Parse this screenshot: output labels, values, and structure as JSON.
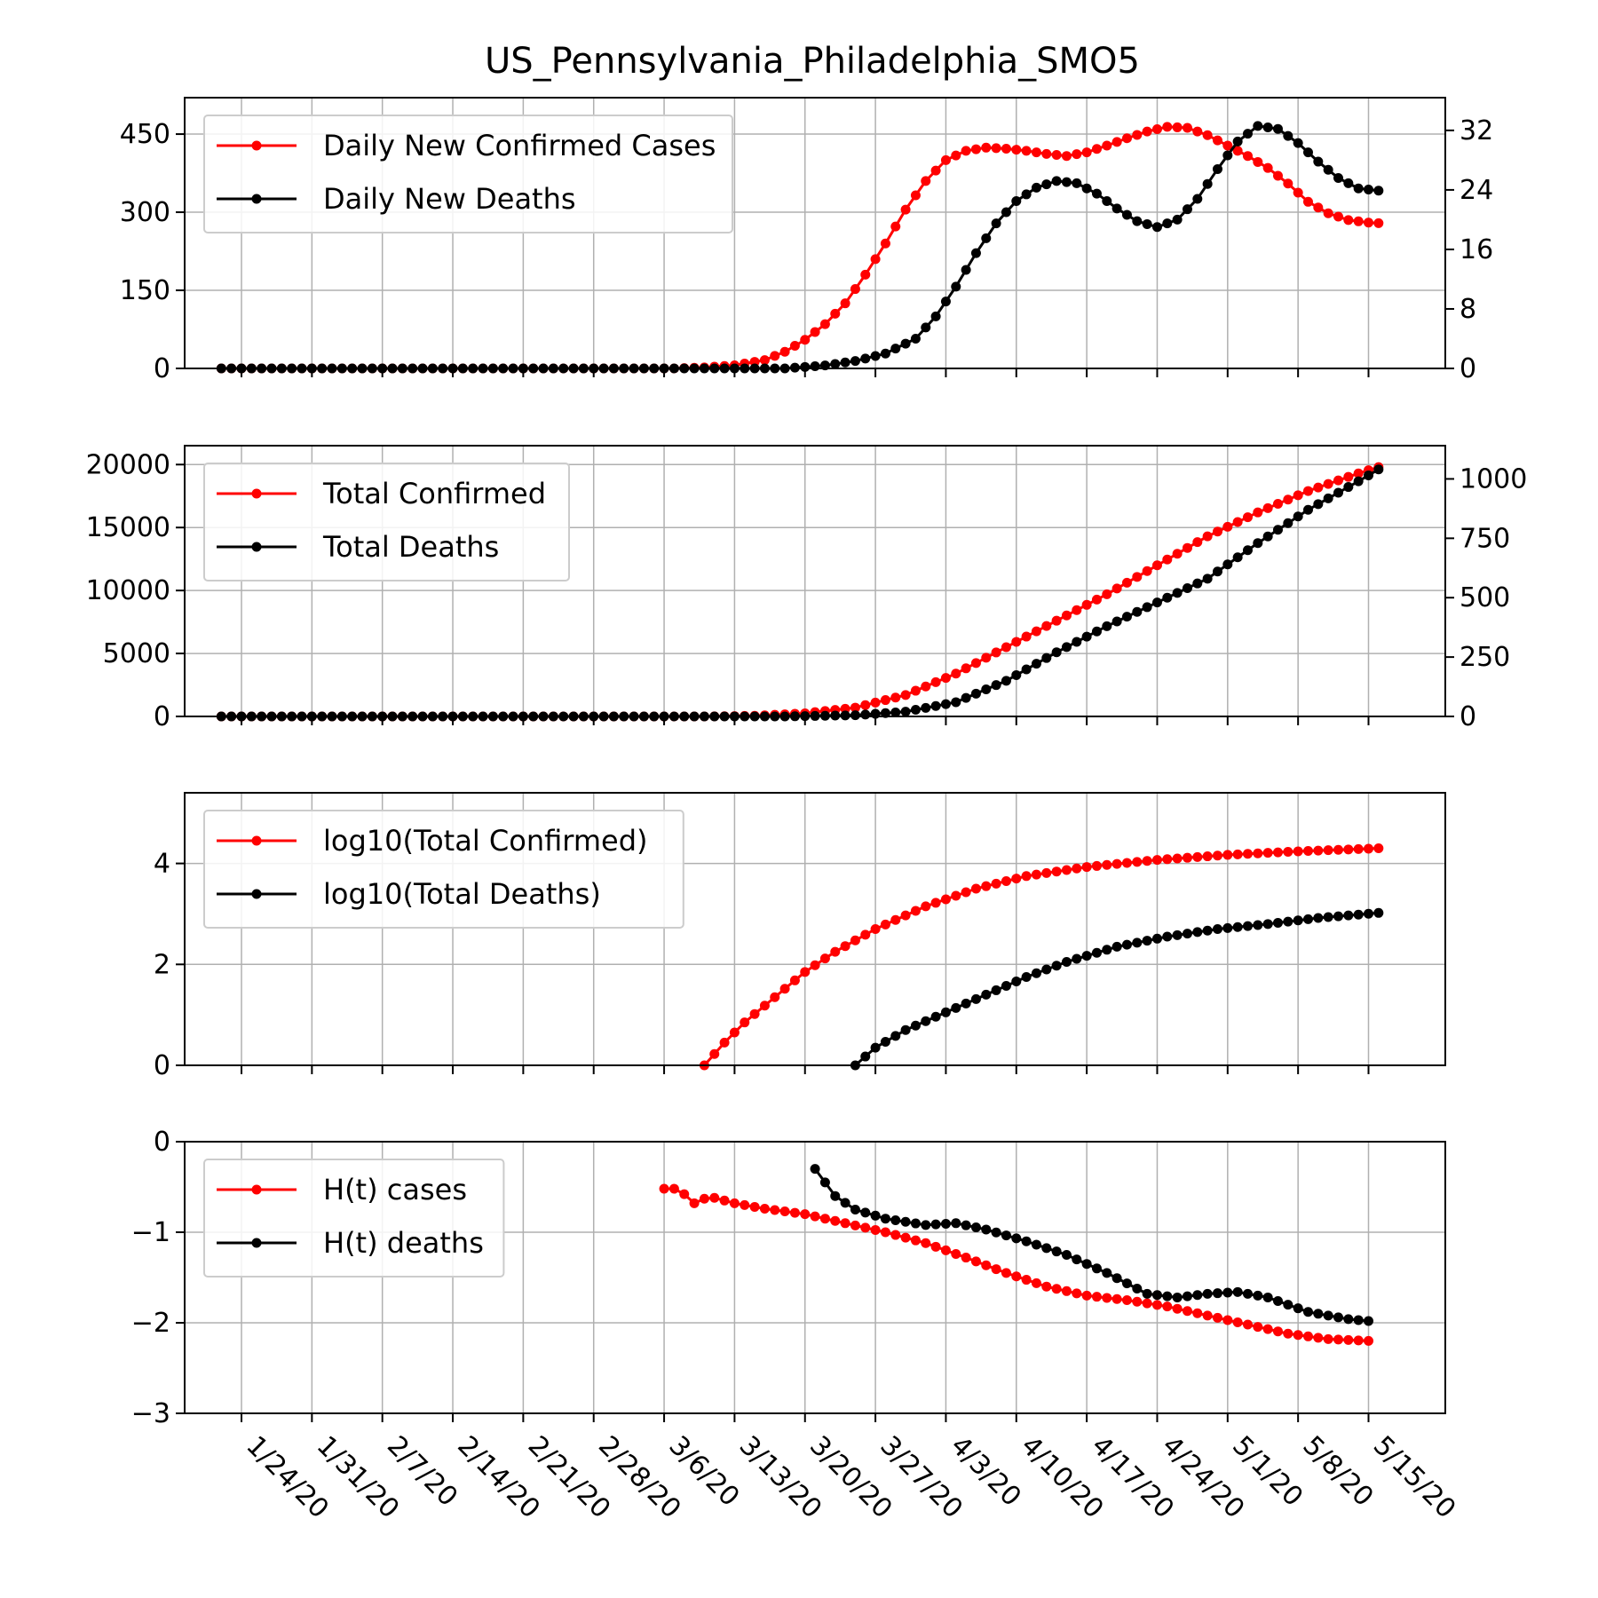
{
  "title": "US_Pennsylvania_Philadelphia_SMO5",
  "colors": {
    "cases": "#ff0000",
    "deaths": "#000000",
    "grid": "#b0b0b0"
  },
  "x_tick_labels": [
    "1/24/20",
    "1/31/20",
    "2/7/20",
    "2/14/20",
    "2/21/20",
    "2/28/20",
    "3/6/20",
    "3/13/20",
    "3/20/20",
    "3/27/20",
    "4/3/20",
    "4/10/20",
    "4/17/20",
    "4/24/20",
    "5/1/20",
    "5/8/20",
    "5/15/20"
  ],
  "chart_data": [
    {
      "type": "line",
      "panel": "daily",
      "title": "US_Pennsylvania_Philadelphia_SMO5",
      "x_start": "1/22/20",
      "x_end": "5/16/20",
      "grid": true,
      "legend": "top-left",
      "legend_entries": [
        "Daily New Confirmed Cases",
        "Daily New Deaths"
      ],
      "y_left": {
        "ylim": [
          0,
          520
        ],
        "ticks": [
          0,
          150,
          300,
          450
        ]
      },
      "y_right": {
        "ylim": [
          0,
          36.4
        ],
        "ticks": [
          0,
          8,
          16,
          24,
          32
        ]
      },
      "series": [
        {
          "name": "Daily New Confirmed Cases",
          "axis": "left",
          "color": "#ff0000",
          "points": [
            [
              "1/22/20",
              0
            ],
            [
              "3/7/20",
              0
            ],
            [
              "3/10/20",
              2
            ],
            [
              "3/13/20",
              6
            ],
            [
              "3/16/20",
              16
            ],
            [
              "3/18/20",
              32
            ],
            [
              "3/20/20",
              55
            ],
            [
              "3/22/20",
              85
            ],
            [
              "3/24/20",
              125
            ],
            [
              "3/26/20",
              180
            ],
            [
              "3/28/20",
              240
            ],
            [
              "3/30/20",
              305
            ],
            [
              "4/1/20",
              360
            ],
            [
              "4/3/20",
              400
            ],
            [
              "4/5/20",
              418
            ],
            [
              "4/7/20",
              424
            ],
            [
              "4/9/20",
              422
            ],
            [
              "4/11/20",
              418
            ],
            [
              "4/13/20",
              412
            ],
            [
              "4/15/20",
              408
            ],
            [
              "4/17/20",
              415
            ],
            [
              "4/19/20",
              428
            ],
            [
              "4/21/20",
              442
            ],
            [
              "4/23/20",
              455
            ],
            [
              "4/25/20",
              464
            ],
            [
              "4/27/20",
              462
            ],
            [
              "4/29/20",
              448
            ],
            [
              "5/1/20",
              428
            ],
            [
              "5/3/20",
              408
            ],
            [
              "5/5/20",
              385
            ],
            [
              "5/7/20",
              355
            ],
            [
              "5/9/20",
              320
            ],
            [
              "5/11/20",
              298
            ],
            [
              "5/13/20",
              285
            ],
            [
              "5/15/20",
              280
            ],
            [
              "5/16/20",
              279
            ]
          ]
        },
        {
          "name": "Daily New Deaths",
          "axis": "right",
          "color": "#000000",
          "points": [
            [
              "1/22/20",
              0
            ],
            [
              "3/18/20",
              0
            ],
            [
              "3/22/20",
              0.4
            ],
            [
              "3/25/20",
              1
            ],
            [
              "3/28/20",
              2
            ],
            [
              "3/31/20",
              4
            ],
            [
              "4/2/20",
              7
            ],
            [
              "4/4/20",
              11
            ],
            [
              "4/6/20",
              15.5
            ],
            [
              "4/8/20",
              19.5
            ],
            [
              "4/10/20",
              22.5
            ],
            [
              "4/12/20",
              24.3
            ],
            [
              "4/14/20",
              25.2
            ],
            [
              "4/16/20",
              24.9
            ],
            [
              "4/18/20",
              23.5
            ],
            [
              "4/20/20",
              21.5
            ],
            [
              "4/22/20",
              19.8
            ],
            [
              "4/24/20",
              19
            ],
            [
              "4/26/20",
              20
            ],
            [
              "4/28/20",
              22.8
            ],
            [
              "4/30/20",
              26.8
            ],
            [
              "5/2/20",
              30.5
            ],
            [
              "5/4/20",
              32.6
            ],
            [
              "5/6/20",
              32.2
            ],
            [
              "5/8/20",
              30.3
            ],
            [
              "5/10/20",
              27.8
            ],
            [
              "5/12/20",
              25.6
            ],
            [
              "5/14/20",
              24.2
            ],
            [
              "5/16/20",
              23.9
            ]
          ]
        }
      ]
    },
    {
      "type": "line",
      "panel": "total",
      "x_start": "1/22/20",
      "x_end": "5/16/20",
      "grid": true,
      "legend": "top-left",
      "legend_entries": [
        "Total Confirmed",
        "Total Deaths"
      ],
      "y_left": {
        "ylim": [
          0,
          21500
        ],
        "ticks": [
          0,
          5000,
          10000,
          15000,
          20000
        ]
      },
      "y_right": {
        "ylim": [
          0,
          1140
        ],
        "ticks": [
          0,
          250,
          500,
          750,
          1000
        ]
      },
      "series": [
        {
          "name": "Total Confirmed",
          "axis": "left",
          "color": "#ff0000",
          "points": [
            [
              "1/22/20",
              0
            ],
            [
              "3/10/20",
              0
            ],
            [
              "3/15/20",
              50
            ],
            [
              "3/20/20",
              250
            ],
            [
              "3/25/20",
              700
            ],
            [
              "3/30/20",
              1700
            ],
            [
              "4/4/20",
              3400
            ],
            [
              "4/9/20",
              5500
            ],
            [
              "4/14/20",
              7600
            ],
            [
              "4/19/20",
              9700
            ],
            [
              "4/24/20",
              12000
            ],
            [
              "4/29/20",
              14300
            ],
            [
              "5/4/20",
              16200
            ],
            [
              "5/9/20",
              17900
            ],
            [
              "5/14/20",
              19300
            ],
            [
              "5/16/20",
              19800
            ]
          ]
        },
        {
          "name": "Total Deaths",
          "axis": "right",
          "color": "#000000",
          "points": [
            [
              "1/22/20",
              0
            ],
            [
              "3/18/20",
              0
            ],
            [
              "3/25/20",
              5
            ],
            [
              "3/30/20",
              20
            ],
            [
              "4/4/20",
              60
            ],
            [
              "4/9/20",
              150
            ],
            [
              "4/14/20",
              270
            ],
            [
              "4/19/20",
              380
            ],
            [
              "4/24/20",
              480
            ],
            [
              "4/29/20",
              580
            ],
            [
              "5/4/20",
              730
            ],
            [
              "5/9/20",
              870
            ],
            [
              "5/14/20",
              990
            ],
            [
              "5/16/20",
              1040
            ]
          ]
        }
      ]
    },
    {
      "type": "line",
      "panel": "log",
      "x_start": "1/22/20",
      "x_end": "5/16/20",
      "grid": true,
      "legend": "top-left",
      "legend_entries": [
        "log10(Total Confirmed)",
        "log10(Total Deaths)"
      ],
      "y_left": {
        "ylim": [
          0,
          5.4
        ],
        "ticks": [
          0,
          2,
          4
        ]
      },
      "series": [
        {
          "name": "log10(Total Confirmed)",
          "axis": "left",
          "color": "#ff0000",
          "points": [
            [
              "3/10/20",
              0
            ],
            [
              "3/12/20",
              0.45
            ],
            [
              "3/14/20",
              0.85
            ],
            [
              "3/17/20",
              1.35
            ],
            [
              "3/20/20",
              1.85
            ],
            [
              "3/23/20",
              2.25
            ],
            [
              "3/27/20",
              2.7
            ],
            [
              "4/1/20",
              3.15
            ],
            [
              "4/6/20",
              3.5
            ],
            [
              "4/11/20",
              3.75
            ],
            [
              "4/17/20",
              3.93
            ],
            [
              "4/24/20",
              4.07
            ],
            [
              "5/1/20",
              4.17
            ],
            [
              "5/8/20",
              4.24
            ],
            [
              "5/16/20",
              4.3
            ]
          ]
        },
        {
          "name": "log10(Total Deaths)",
          "axis": "left",
          "color": "#000000",
          "points": [
            [
              "3/25/20",
              0
            ],
            [
              "3/27/20",
              0.35
            ],
            [
              "3/30/20",
              0.7
            ],
            [
              "4/3/20",
              1.05
            ],
            [
              "4/7/20",
              1.4
            ],
            [
              "4/11/20",
              1.75
            ],
            [
              "4/15/20",
              2.05
            ],
            [
              "4/20/20",
              2.35
            ],
            [
              "4/25/20",
              2.55
            ],
            [
              "4/30/20",
              2.7
            ],
            [
              "5/5/20",
              2.8
            ],
            [
              "5/10/20",
              2.92
            ],
            [
              "5/16/20",
              3.02
            ]
          ]
        }
      ]
    },
    {
      "type": "line",
      "panel": "ht",
      "x_start": "1/22/20",
      "x_end": "5/16/20",
      "grid": true,
      "legend": "top-left",
      "legend_entries": [
        "H(t) cases",
        "H(t) deaths"
      ],
      "y_left": {
        "ylim": [
          -3,
          0
        ],
        "ticks": [
          0,
          -1,
          -2,
          -3
        ]
      },
      "series": [
        {
          "name": "H(t) cases",
          "axis": "left",
          "color": "#ff0000",
          "points": [
            [
              "3/6/20",
              -0.52
            ],
            [
              "3/7/20",
              -0.52
            ],
            [
              "3/8/20",
              -0.58
            ],
            [
              "3/9/20",
              -0.68
            ],
            [
              "3/10/20",
              -0.63
            ],
            [
              "3/11/20",
              -0.62
            ],
            [
              "3/13/20",
              -0.68
            ],
            [
              "3/16/20",
              -0.74
            ],
            [
              "3/20/20",
              -0.8
            ],
            [
              "3/24/20",
              -0.9
            ],
            [
              "3/28/20",
              -1.0
            ],
            [
              "4/1/20",
              -1.12
            ],
            [
              "4/5/20",
              -1.28
            ],
            [
              "4/9/20",
              -1.45
            ],
            [
              "4/13/20",
              -1.6
            ],
            [
              "4/17/20",
              -1.7
            ],
            [
              "4/21/20",
              -1.75
            ],
            [
              "4/25/20",
              -1.82
            ],
            [
              "4/29/20",
              -1.92
            ],
            [
              "5/3/20",
              -2.02
            ],
            [
              "5/7/20",
              -2.12
            ],
            [
              "5/11/20",
              -2.18
            ],
            [
              "5/15/20",
              -2.2
            ]
          ]
        },
        {
          "name": "H(t) deaths",
          "axis": "left",
          "color": "#000000",
          "points": [
            [
              "3/21/20",
              -0.3
            ],
            [
              "3/22/20",
              -0.45
            ],
            [
              "3/23/20",
              -0.6
            ],
            [
              "3/25/20",
              -0.75
            ],
            [
              "3/28/20",
              -0.85
            ],
            [
              "4/1/20",
              -0.92
            ],
            [
              "4/4/20",
              -0.9
            ],
            [
              "4/7/20",
              -0.97
            ],
            [
              "4/11/20",
              -1.1
            ],
            [
              "4/15/20",
              -1.25
            ],
            [
              "4/19/20",
              -1.45
            ],
            [
              "4/23/20",
              -1.68
            ],
            [
              "4/26/20",
              -1.72
            ],
            [
              "4/29/20",
              -1.68
            ],
            [
              "5/2/20",
              -1.66
            ],
            [
              "5/5/20",
              -1.72
            ],
            [
              "5/9/20",
              -1.88
            ],
            [
              "5/13/20",
              -1.96
            ],
            [
              "5/15/20",
              -1.98
            ]
          ]
        }
      ]
    }
  ]
}
